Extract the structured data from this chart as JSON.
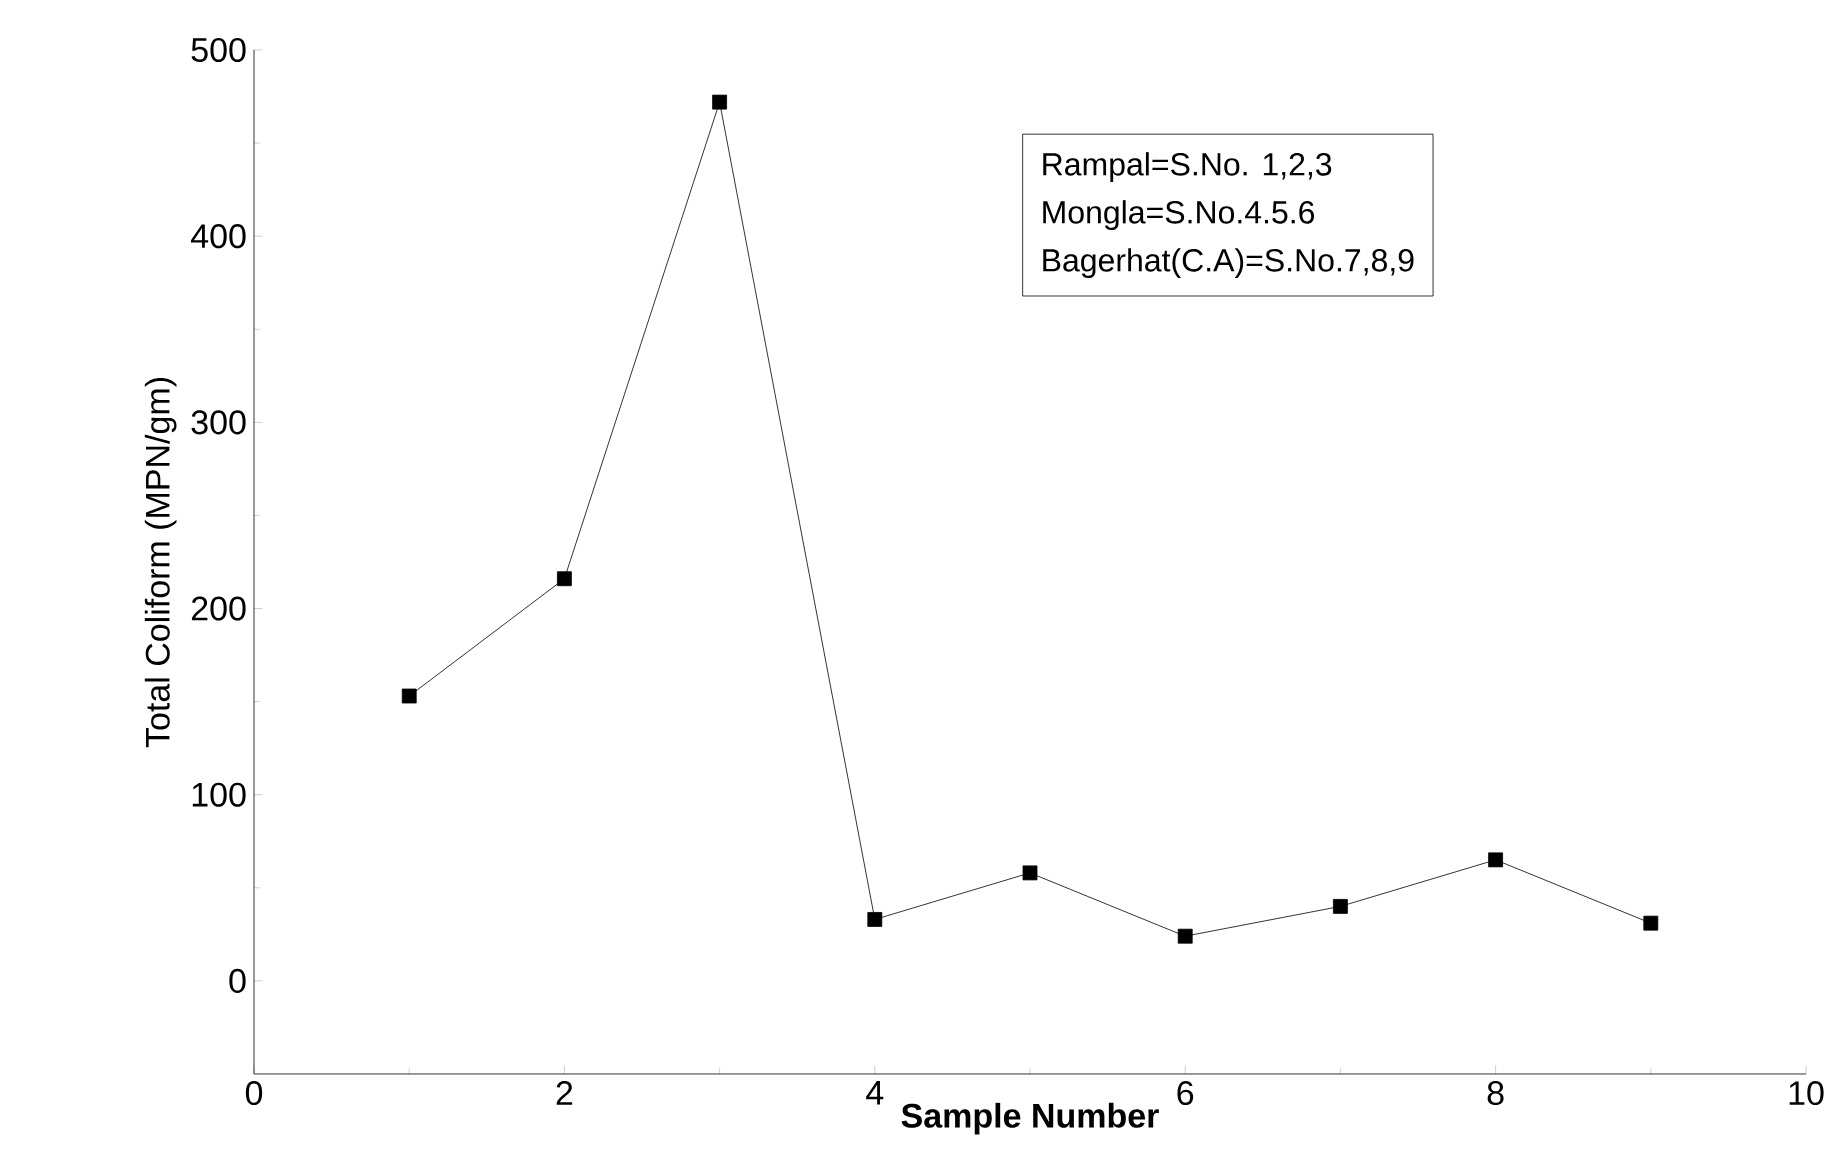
{
  "chart_data": {
    "type": "line",
    "xlabel": "Sample Number",
    "ylabel": "Total Coliform (MPN/gm)",
    "x": [
      1,
      2,
      3,
      4,
      5,
      6,
      7,
      8,
      9
    ],
    "series": [
      {
        "color": "#000000",
        "values": [
          153,
          216,
          472,
          33,
          58,
          24,
          40,
          65,
          31
        ]
      }
    ],
    "xlim": [
      0,
      10
    ],
    "xticks": [
      0,
      2,
      4,
      6,
      8,
      10
    ],
    "ylim": [
      -50,
      500
    ],
    "yticks": [
      0,
      100,
      200,
      300,
      400,
      500
    ],
    "marker": "square",
    "line_style": "solid",
    "grid": false,
    "annotations": [
      "Rampal=S.No.  1,2,3",
      "Mongla=S.No.4.5.6",
      "Bagerhat(C.A)=S.No.7,8,9"
    ]
  }
}
